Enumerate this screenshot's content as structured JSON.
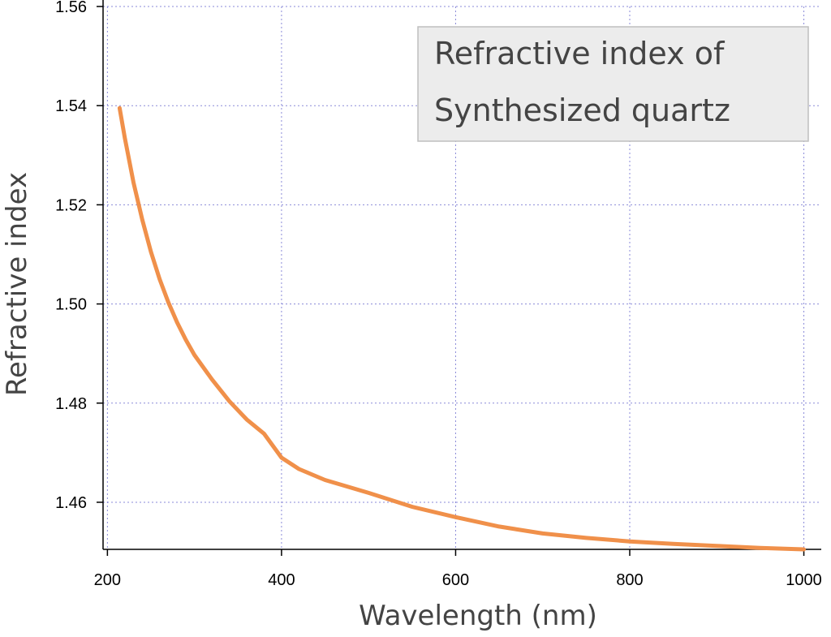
{
  "chart_data": {
    "type": "line",
    "xlabel": "Wavelength (nm)",
    "ylabel": "Refractive index",
    "legend_lines": [
      "Refractive index of",
      "Synthesized quartz"
    ],
    "legend_position": "top-right",
    "xlim": [
      195,
      1020
    ],
    "ylim": [
      1.4505,
      1.56
    ],
    "x_ticks": [
      200,
      400,
      600,
      800,
      1000
    ],
    "x_tick_labels": [
      "200",
      "400",
      "600",
      "800",
      "1000"
    ],
    "y_ticks": [
      1.46,
      1.48,
      1.5,
      1.52,
      1.54,
      1.56
    ],
    "y_tick_labels": [
      "1.46",
      "1.48",
      "1.50",
      "1.52",
      "1.54",
      "1.56"
    ],
    "grid": true,
    "series": [
      {
        "color": "#f0904a",
        "x": [
          214,
          220,
          230,
          240,
          250,
          260,
          270,
          280,
          290,
          300,
          320,
          340,
          360,
          380,
          400,
          420,
          450,
          500,
          550,
          600,
          650,
          700,
          750,
          800,
          850,
          900,
          950,
          1000
        ],
        "y": [
          1.5395,
          1.5335,
          1.5245,
          1.517,
          1.5105,
          1.505,
          1.5003,
          1.4963,
          1.4928,
          1.4897,
          1.4848,
          1.4804,
          1.4767,
          1.4738,
          1.469,
          1.4667,
          1.4645,
          1.4619,
          1.4591,
          1.457,
          1.4551,
          1.4537,
          1.4528,
          1.4521,
          1.4516,
          1.4512,
          1.4508,
          1.4505
        ]
      }
    ]
  },
  "colors": {
    "line": "#f0904a",
    "grid": "#8a8ad8",
    "legend_bg": "#ececec",
    "legend_border": "#bfbfbf"
  }
}
